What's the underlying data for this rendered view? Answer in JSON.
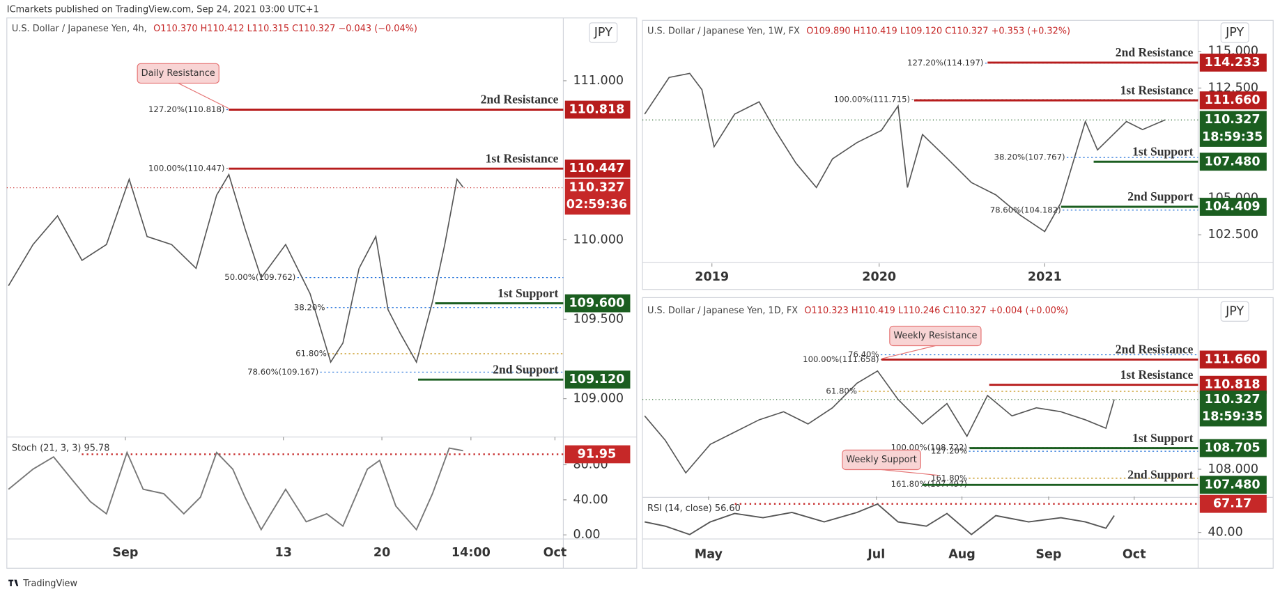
{
  "header": "ICmarkets published on TradingView.com, Sep 24, 2021 03:00 UTC+1",
  "footer": "TradingView",
  "chart_data": [
    {
      "type": "line",
      "title": "U.S. Dollar / Japanese Yen, 4h,",
      "ohlc": "O110.370 H110.412 L110.315 C110.327 −0.043 (−0.04%)",
      "axis_label": "JPY",
      "color": "#555555",
      "xlim": [
        0,
        100
      ],
      "ylim": [
        108.764,
        111.395
      ],
      "xticks": [
        {
          "value": 21.3,
          "label": "Sep"
        },
        {
          "value": 49.7,
          "label": "13"
        },
        {
          "value": 67.4,
          "label": "20"
        },
        {
          "value": 83.4,
          "label": "14:00"
        },
        {
          "value": 98.5,
          "label": "Oct"
        }
      ],
      "yticks": [
        {
          "value": 111,
          "label": "111.000"
        },
        {
          "value": 110,
          "label": "110.000"
        },
        {
          "value": 109.5,
          "label": "109.500"
        },
        {
          "value": 109,
          "label": "109.000"
        }
      ],
      "x": [
        0.3,
        4.7,
        9.1,
        13.5,
        17.9,
        22,
        25.2,
        29.6,
        34,
        37.7,
        39.9,
        42.8,
        45.7,
        50.1,
        54.5,
        58.2,
        60.4,
        63.3,
        66.3,
        68.5,
        70.7,
        73.6,
        76.5,
        78.7,
        80.9,
        82
      ],
      "values": [
        109.71,
        109.97,
        110.15,
        109.87,
        109.97,
        110.38,
        110.02,
        109.97,
        109.82,
        110.28,
        110.41,
        110.07,
        109.76,
        109.97,
        109.66,
        109.23,
        109.35,
        109.82,
        110.02,
        109.56,
        109.41,
        109.23,
        109.61,
        109.97,
        110.38,
        110.33
      ],
      "last_price": {
        "value": 110.327,
        "value_label": "110.327",
        "countdown": "02:59:36",
        "color": "#c62828"
      },
      "levels": [
        {
          "name": "2nd Resistance",
          "value": 110.818,
          "value_label": "110.818",
          "color": "#b71c1c"
        },
        {
          "name": "1st Resistance",
          "value": 110.447,
          "value_label": "110.447",
          "color": "#b71c1c"
        },
        {
          "name": "1st Support",
          "value": 109.6,
          "value_label": "109.600",
          "color": "#1b5e20"
        },
        {
          "name": "2nd Support",
          "value": 109.12,
          "value_label": "109.120",
          "color": "#1b5e20"
        }
      ],
      "fibs": [
        {
          "label": "127.20%(110.818)",
          "value": 110.818,
          "color": "#1e6fd9"
        },
        {
          "label": "100.00%(110.447)",
          "value": 110.447,
          "color": "#777777"
        },
        {
          "label": "50.00%(109.762)",
          "value": 109.762,
          "color": "#1e6fd9"
        },
        {
          "label": "38.20%",
          "value": 109.573,
          "color": "#1e6fd9"
        },
        {
          "label": "61.80%",
          "value": 109.283,
          "color": "#c08a00"
        },
        {
          "label": "78.60%(109.167)",
          "value": 109.167,
          "color": "#1e6fd9"
        }
      ],
      "callouts": [
        "Daily Resistance"
      ]
    },
    {
      "type": "line",
      "title": "U.S. Dollar / Japanese Yen, 1W, FX",
      "ohlc": "O109.890 H110.419 L109.120 C110.327 +0.353 (+0.32%)",
      "axis_label": "JPY",
      "color": "#555555",
      "xlim": [
        0,
        100
      ],
      "ylim": [
        100.61,
        117.11
      ],
      "xticks": [
        {
          "value": 12.5,
          "label": "2019"
        },
        {
          "value": 42.6,
          "label": "2020"
        },
        {
          "value": 72.4,
          "label": "2021"
        }
      ],
      "yticks": [
        {
          "value": 115,
          "label": "115.000"
        },
        {
          "value": 112.5,
          "label": "112.500"
        },
        {
          "value": 105,
          "label": "105.000"
        },
        {
          "value": 102.5,
          "label": "102.500"
        }
      ],
      "x": [
        0.4,
        4.8,
        8.5,
        10.7,
        12.9,
        16.6,
        21,
        23.9,
        27.6,
        31.3,
        34.2,
        38.6,
        43,
        46,
        47.7,
        50.4,
        54.8,
        59.2,
        63.6,
        68,
        72.4,
        75.3,
        77.5,
        79.7,
        81.9,
        87.1,
        90,
        94.1
      ],
      "values": [
        110.72,
        113.22,
        113.5,
        112.39,
        108.5,
        110.72,
        111.56,
        109.61,
        107.39,
        105.72,
        107.67,
        108.78,
        109.61,
        111.28,
        105.72,
        109.33,
        107.72,
        106.06,
        105.22,
        103.83,
        102.72,
        104.67,
        107.44,
        110.22,
        108.28,
        110.22,
        109.67,
        110.33
      ],
      "last_price": {
        "value": 110.327,
        "value_label": "110.327",
        "countdown": "18:59:35",
        "color": "#1b5e20"
      },
      "levels": [
        {
          "name": "2nd Resistance",
          "value": 114.233,
          "value_label": "114.233",
          "color": "#b71c1c"
        },
        {
          "name": "1st Resistance",
          "value": 111.66,
          "value_label": "111.660",
          "color": "#b71c1c"
        },
        {
          "name": "1st Support",
          "value": 107.48,
          "value_label": "107.480",
          "color": "#1b5e20"
        },
        {
          "name": "2nd Support",
          "value": 104.409,
          "value_label": "104.409",
          "color": "#1b5e20"
        }
      ],
      "fibs": [
        {
          "label": "127.20%(114.197)",
          "value": 114.197,
          "color": "#1e6fd9"
        },
        {
          "label": "100.00%(111.715)",
          "value": 111.715,
          "color": "#777777"
        },
        {
          "label": "38.20%(107.767)",
          "value": 107.767,
          "color": "#1e6fd9"
        },
        {
          "label": "78.60%(104.182)",
          "value": 104.182,
          "color": "#1e6fd9"
        }
      ],
      "callouts": []
    },
    {
      "type": "line",
      "title": "U.S. Dollar / Japanese Yen, 1D, FX",
      "ohlc": "O110.323 H110.419 L110.246 C110.327 +0.004 (+0.00%)",
      "axis_label": "JPY",
      "color": "#555555",
      "xlim": [
        0,
        100
      ],
      "ylim": [
        107.117,
        113.646
      ],
      "xticks": [
        {
          "value": 11.9,
          "label": "May"
        },
        {
          "value": 42.1,
          "label": "Jul"
        },
        {
          "value": 57.5,
          "label": "Aug"
        },
        {
          "value": 73.1,
          "label": "Sep"
        },
        {
          "value": 88.5,
          "label": "Oct"
        }
      ],
      "yticks": [
        {
          "value": 108,
          "label": "108.000"
        }
      ],
      "x": [
        0.4,
        4.1,
        7.8,
        12.2,
        16.6,
        21,
        25.4,
        29.8,
        34.2,
        38.6,
        42.3,
        46,
        50.4,
        54.8,
        58.4,
        62.1,
        66.5,
        70.9,
        75.3,
        79.7,
        83.4,
        84.9
      ],
      "values": [
        109.78,
        108.97,
        107.88,
        108.83,
        109.24,
        109.65,
        109.92,
        109.51,
        110.05,
        110.87,
        111.28,
        110.33,
        109.51,
        110.19,
        109.1,
        110.46,
        109.78,
        110.05,
        109.92,
        109.65,
        109.37,
        110.33
      ],
      "last_price": {
        "value": 110.327,
        "value_label": "110.327",
        "countdown": "18:59:35",
        "color": "#1b5e20"
      },
      "levels": [
        {
          "name": "2nd Resistance",
          "value": 111.66,
          "value_label": "111.660",
          "color": "#b71c1c"
        },
        {
          "name": "1st Resistance",
          "value": 110.818,
          "value_label": "110.818",
          "color": "#b71c1c"
        },
        {
          "name": "1st Support",
          "value": 108.705,
          "value_label": "108.705",
          "color": "#1b5e20"
        },
        {
          "name": "2nd Support",
          "value": 107.48,
          "value_label": "107.480",
          "color": "#1b5e20"
        }
      ],
      "fibs": [
        {
          "label": "76.40%",
          "value": 111.82,
          "color": "#1e6fd9"
        },
        {
          "label": "100.00%(111.658)",
          "value": 111.658,
          "color": "#777777"
        },
        {
          "label": "61.80%",
          "value": 110.6,
          "color": "#c08a00"
        },
        {
          "label": "100.00%(108.722)",
          "value": 108.722,
          "color": "#777777"
        },
        {
          "label": "127.20%",
          "value": 108.6,
          "color": "#1e6fd9"
        },
        {
          "label": "161.80%",
          "value": 107.7,
          "color": "#c08a00"
        },
        {
          "label": "161.80%(107.497)",
          "value": 107.497,
          "color": "#c08a00"
        }
      ],
      "callouts": [
        "Weekly Resistance",
        "Weekly Support"
      ]
    },
    {
      "type": "oscillator",
      "title": "Stoch (21, 3, 3)  95.78",
      "color": "#777777",
      "xlim": [
        0,
        100
      ],
      "ylim": [
        -3.7,
        109.8
      ],
      "yticks": [
        {
          "value": 0,
          "label": "0.00"
        },
        {
          "value": 40,
          "label": "40.00"
        },
        {
          "value": 80,
          "label": "80.00"
        }
      ],
      "x": [
        0.3,
        4.7,
        8.4,
        12,
        15,
        17.9,
        21.6,
        24.5,
        28.2,
        31.8,
        34.8,
        37.7,
        40.6,
        42.8,
        45.7,
        50.1,
        53.8,
        57.5,
        60.4,
        64.8,
        67,
        69.9,
        73.6,
        76.5,
        79.5,
        82
      ],
      "values": [
        52,
        75,
        89,
        61,
        38,
        24,
        94,
        52,
        47,
        24,
        43,
        94,
        75,
        43,
        6,
        52,
        15,
        24,
        10,
        75,
        85,
        33,
        6,
        47,
        99,
        96
      ],
      "level": {
        "value": 91.95,
        "value_label": "91.95",
        "color": "#c62828"
      }
    },
    {
      "type": "oscillator",
      "title": "RSI (14, close)  56.60",
      "color": "#555555",
      "xlim": [
        0,
        100
      ],
      "ylim": [
        34.57,
        71.83
      ],
      "yticks": [
        {
          "value": 40,
          "label": "40.00"
        }
      ],
      "x": [
        0.4,
        4.1,
        8.5,
        12.2,
        16.6,
        21.7,
        26.9,
        32.7,
        38.6,
        42.3,
        46,
        51.1,
        54.8,
        59.2,
        63.6,
        69.5,
        75.3,
        79.7,
        83.4,
        84.9
      ],
      "values": [
        50,
        46,
        38,
        50,
        58,
        54,
        59,
        50,
        59,
        67,
        50,
        46,
        58,
        38,
        56,
        50,
        54,
        50,
        44,
        56
      ],
      "level": {
        "value": 67.17,
        "value_label": "67.17",
        "color": "#c62828"
      }
    }
  ]
}
